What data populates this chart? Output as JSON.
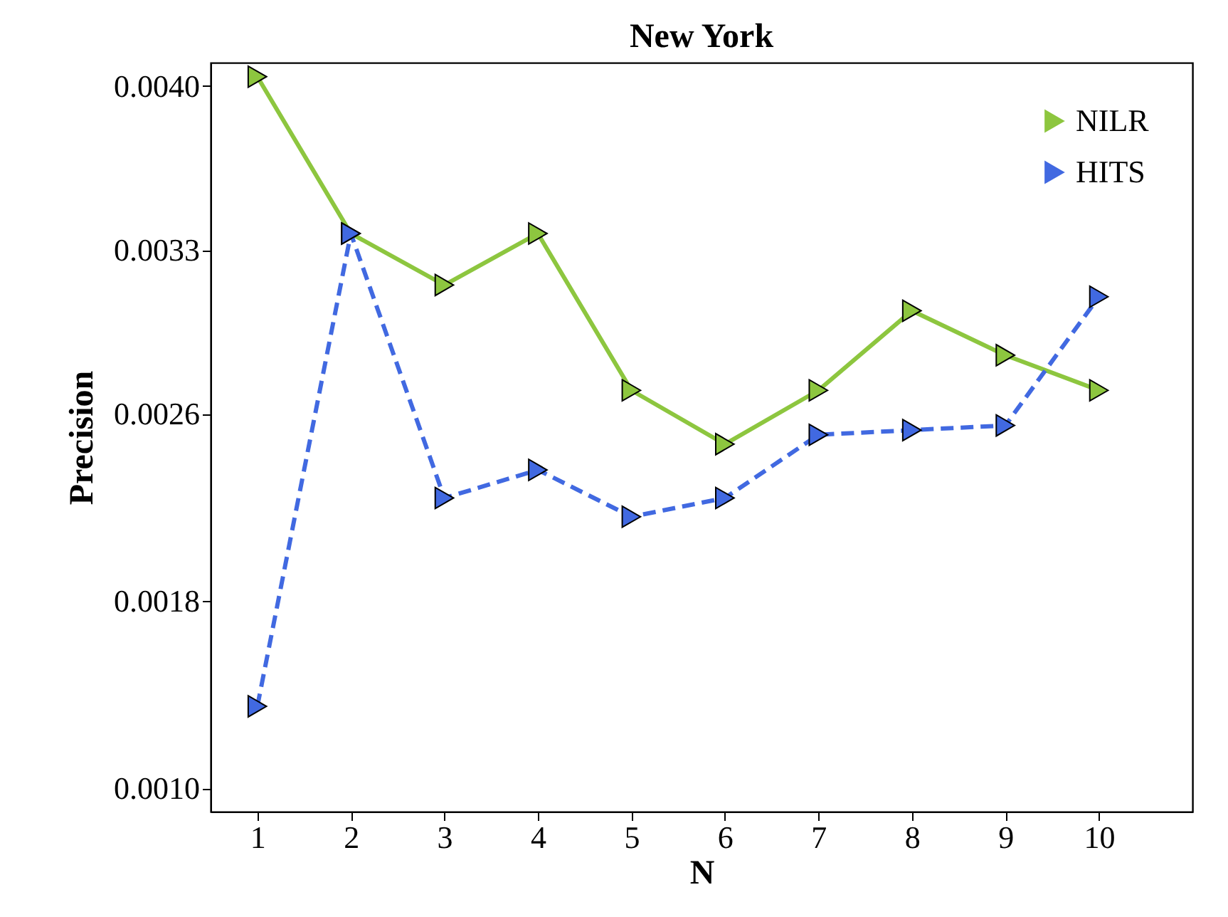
{
  "chart_data": {
    "type": "line",
    "title": "New York",
    "xlabel": "N",
    "ylabel": "Precision",
    "x": [
      1,
      2,
      3,
      4,
      5,
      6,
      7,
      8,
      9,
      10
    ],
    "series": [
      {
        "name": "NILR",
        "color": "#8dc63f",
        "line_style": "solid",
        "values": [
          0.00404,
          0.00337,
          0.00315,
          0.00337,
          0.0027,
          0.00247,
          0.0027,
          0.00304,
          0.00285,
          0.0027
        ]
      },
      {
        "name": "HITS",
        "color": "#4169e1",
        "line_style": "dashed",
        "values": [
          0.00135,
          0.00337,
          0.00224,
          0.00236,
          0.00216,
          0.00224,
          0.00251,
          0.00253,
          0.00255,
          0.0031
        ]
      }
    ],
    "xlim": [
      0.5,
      11
    ],
    "xticks": [
      1,
      2,
      3,
      4,
      5,
      6,
      7,
      8,
      9,
      10
    ],
    "ylim": [
      0.0009,
      0.0041
    ],
    "yticks": [
      {
        "value": 0.001,
        "label": "0.0010"
      },
      {
        "value": 0.0018,
        "label": "0.0018"
      },
      {
        "value": 0.0026,
        "label": "0.0026"
      },
      {
        "value": 0.0033,
        "label": "0.0033"
      },
      {
        "value": 0.004,
        "label": "0.0040"
      }
    ],
    "marker": "triangle",
    "legend": "top right",
    "grid": false
  }
}
